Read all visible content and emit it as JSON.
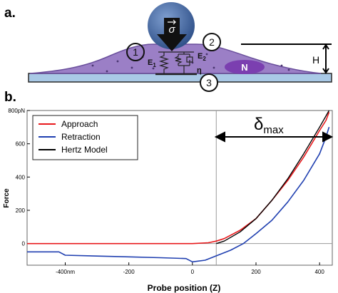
{
  "panel_a": {
    "label": "a.",
    "sigma": "σ",
    "callouts": [
      "1",
      "2",
      "3"
    ],
    "e1": "E",
    "e1_sub": "1",
    "e2": "E",
    "e2_sub": "2",
    "eta": "η",
    "nucleus": "N",
    "height": "H",
    "colors": {
      "cell": "#9b7fc6",
      "cell_edge": "#6a4f9c",
      "substrate": "#a9c9e6",
      "probe": "#3d5f98",
      "nucleus": "#7b3fb0"
    }
  },
  "panel_b": {
    "label": "b.",
    "delta": "δ",
    "delta_sub": "max",
    "ylabel": "Force",
    "xlabel": "Probe position (Z)",
    "ytick_labels": [
      "800pN",
      "600",
      "400",
      "200",
      "0"
    ],
    "xtick_labels": [
      "-400nm",
      "-200",
      "0",
      "200",
      "400"
    ],
    "legend": [
      {
        "name": "Approach",
        "color": "#e8191c"
      },
      {
        "name": "Retraction",
        "color": "#1f3fb0"
      },
      {
        "name": "Hertz Model",
        "color": "#000000"
      }
    ]
  },
  "chart_data": {
    "type": "line",
    "xlabel": "Probe position (Z)",
    "ylabel": "Force",
    "xlim": [
      -520,
      440
    ],
    "ylim": [
      -130,
      800
    ],
    "xticks": [
      -400,
      -200,
      0,
      200,
      400
    ],
    "yticks": [
      0,
      200,
      400,
      600,
      800
    ],
    "contact_point_x": 75,
    "grid": false,
    "legend_position": "top-left",
    "series": [
      {
        "name": "Approach",
        "color": "#e8191c",
        "x": [
          -520,
          -400,
          -300,
          -200,
          -100,
          0,
          50,
          75,
          100,
          150,
          200,
          250,
          300,
          350,
          400,
          420,
          430
        ],
        "y": [
          0,
          0,
          0,
          0,
          0,
          0,
          5,
          15,
          30,
          80,
          150,
          260,
          380,
          520,
          680,
          740,
          790
        ]
      },
      {
        "name": "Retraction",
        "color": "#1f3fb0",
        "x": [
          -520,
          -420,
          -400,
          -300,
          -200,
          -100,
          -20,
          0,
          40,
          80,
          120,
          160,
          200,
          250,
          300,
          350,
          400,
          420,
          430
        ],
        "y": [
          -50,
          -50,
          -70,
          -75,
          -80,
          -85,
          -90,
          -110,
          -100,
          -70,
          -40,
          0,
          60,
          140,
          250,
          380,
          540,
          640,
          700
        ]
      },
      {
        "name": "Hertz Model",
        "color": "#000000",
        "x": [
          75,
          100,
          150,
          200,
          250,
          300,
          350,
          400,
          430
        ],
        "y": [
          0,
          15,
          70,
          150,
          260,
          390,
          540,
          700,
          800
        ]
      }
    ]
  }
}
